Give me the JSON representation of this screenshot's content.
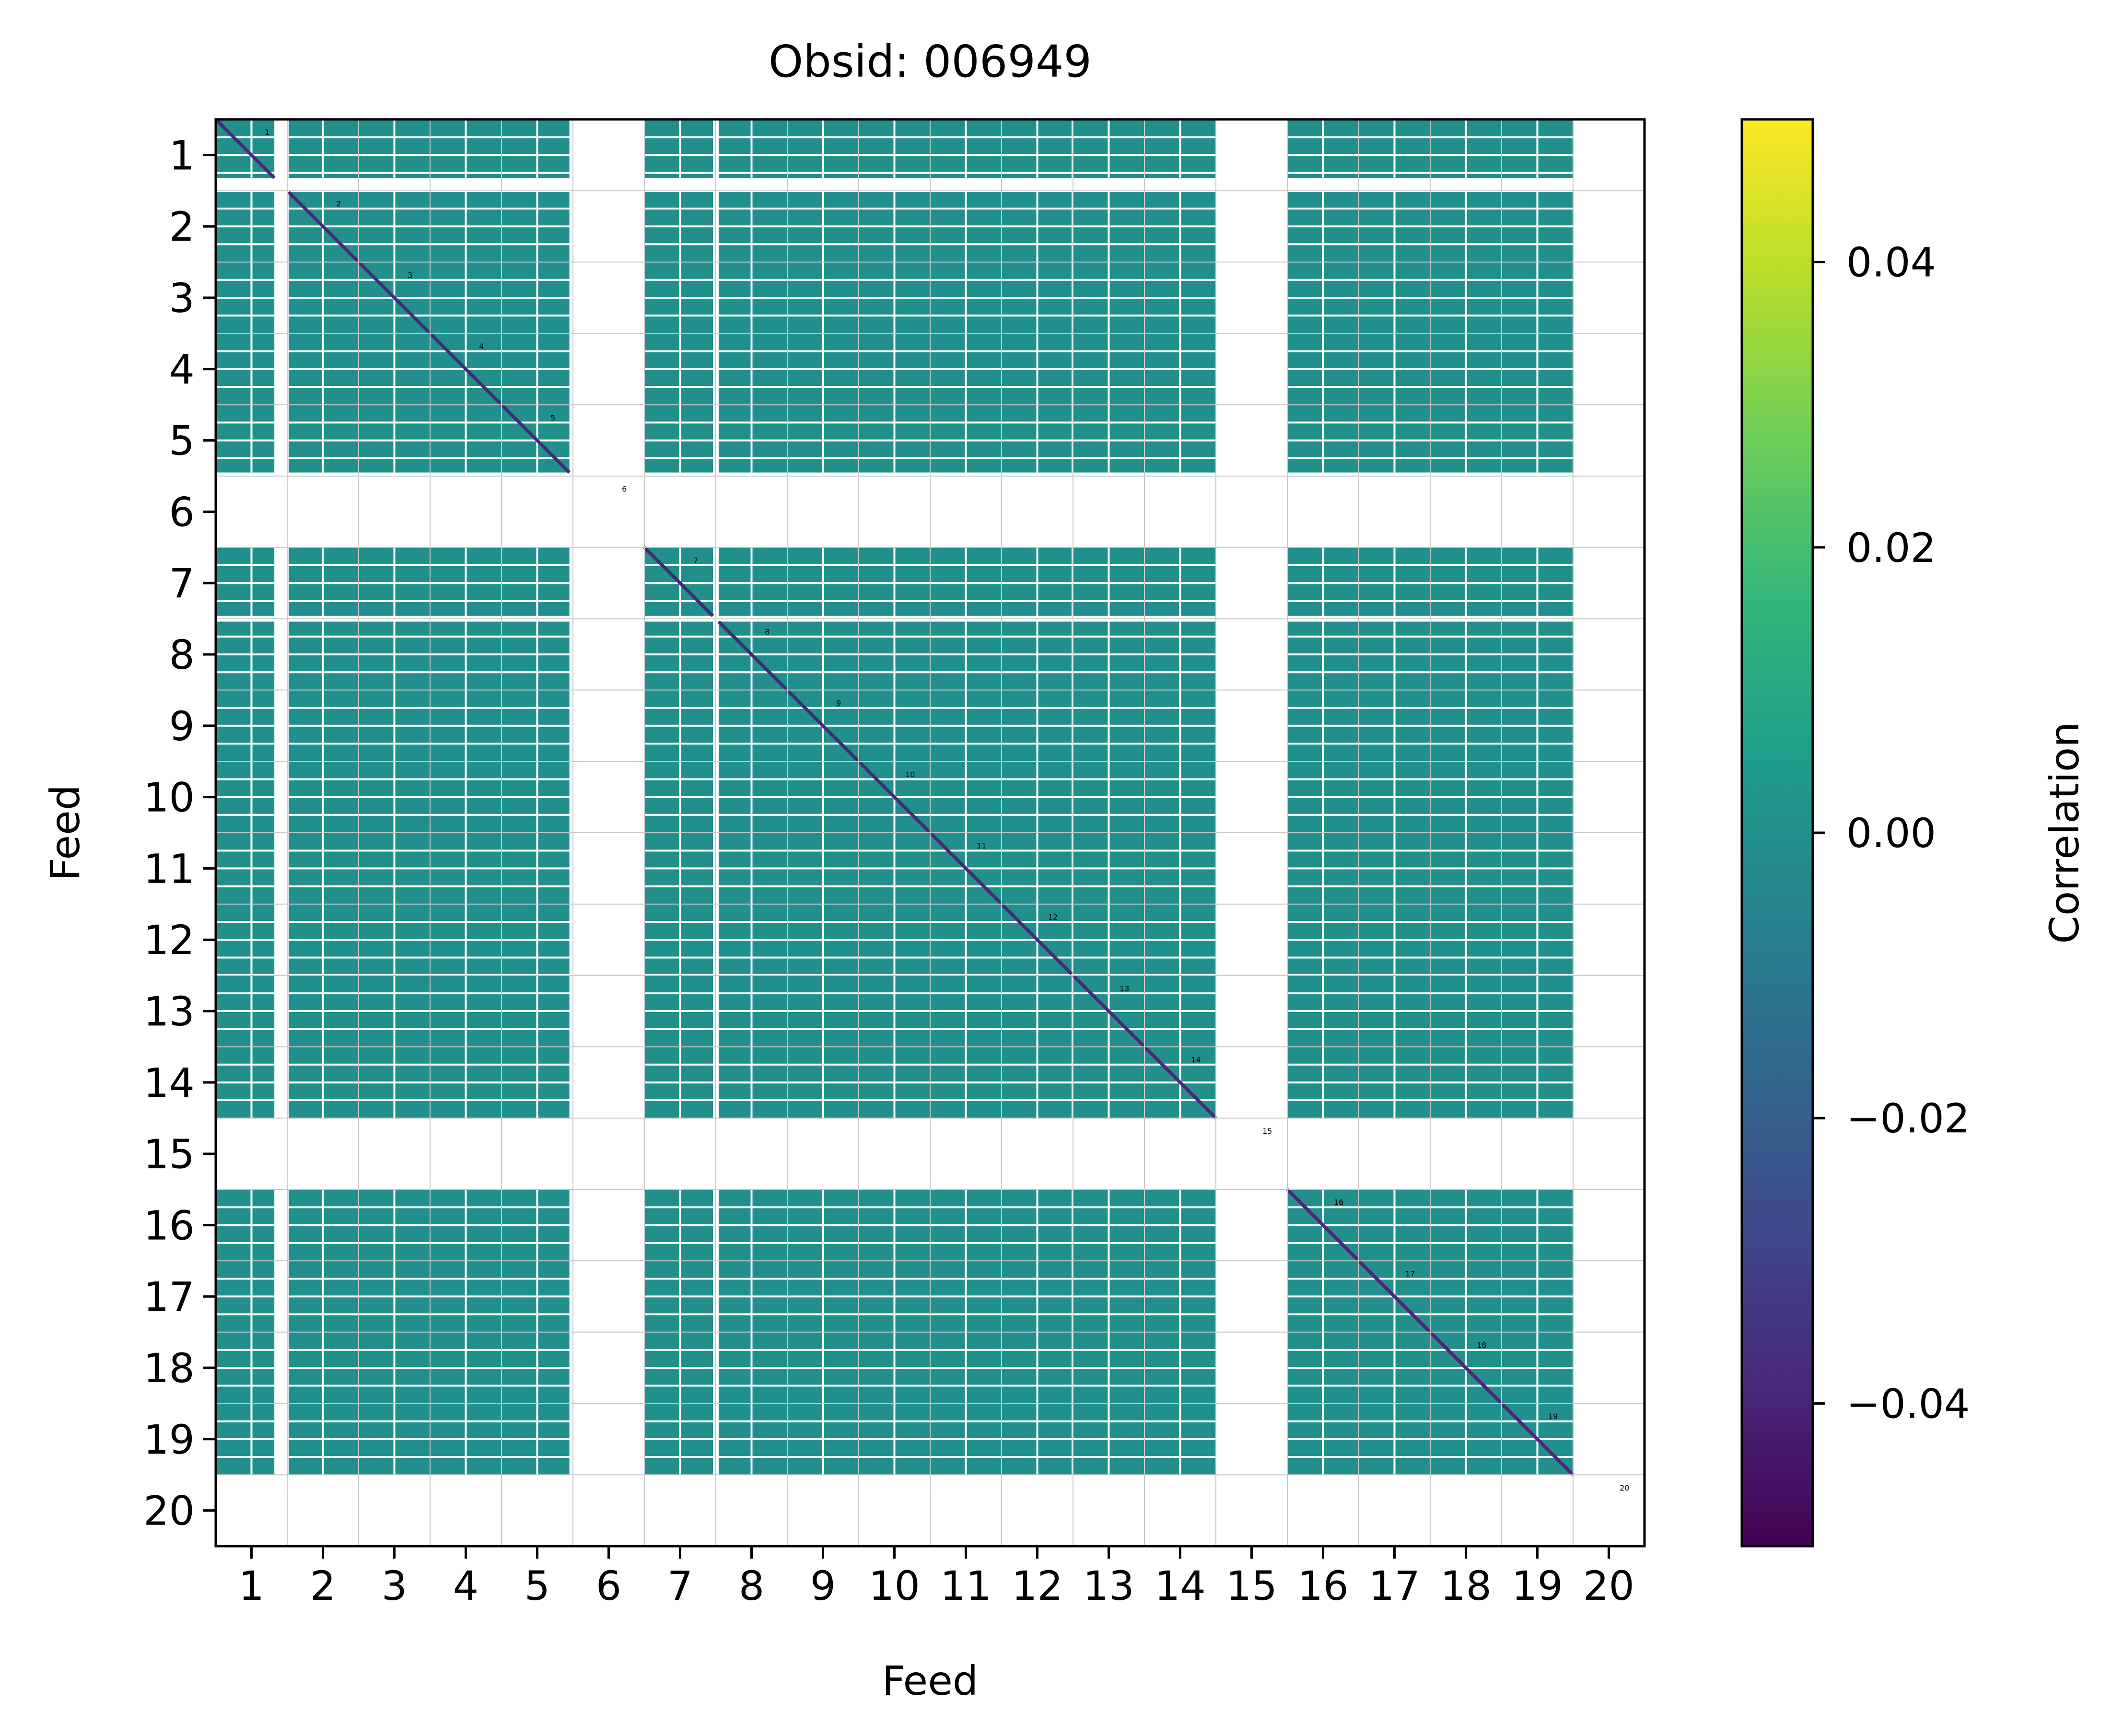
{
  "chart_data": {
    "type": "heatmap",
    "title": "Obsid: 006949",
    "xlabel": "Feed",
    "ylabel": "Feed",
    "colorbar": {
      "label": "Correlation",
      "colormap": "viridis",
      "vmin": -0.05,
      "vmax": 0.05,
      "ticks": [
        0.04,
        0.02,
        0.0,
        -0.02,
        -0.04
      ],
      "tick_labels": [
        "0.04",
        "0.02",
        "0.00",
        "−0.02",
        "−0.04"
      ]
    },
    "feeds": [
      1,
      2,
      3,
      4,
      5,
      6,
      7,
      8,
      9,
      10,
      11,
      12,
      13,
      14,
      15,
      16,
      17,
      18,
      19,
      20
    ],
    "x_tick_labels": [
      "1",
      "2",
      "3",
      "4",
      "5",
      "6",
      "7",
      "8",
      "9",
      "10",
      "11",
      "12",
      "13",
      "14",
      "15",
      "16",
      "17",
      "18",
      "19",
      "20"
    ],
    "y_tick_labels": [
      "1",
      "2",
      "3",
      "4",
      "5",
      "6",
      "7",
      "8",
      "9",
      "10",
      "11",
      "12",
      "13",
      "14",
      "15",
      "16",
      "17",
      "18",
      "19",
      "20"
    ],
    "diagonal_labels": [
      "1",
      "2",
      "3",
      "4",
      "5",
      "6",
      "7",
      "8",
      "9",
      "10",
      "11",
      "12",
      "13",
      "14",
      "15",
      "16",
      "17",
      "18",
      "19",
      "20"
    ],
    "axis_range_feed": [
      0.5,
      20.5
    ],
    "offdiag_value": 0.0,
    "diag_value": -0.05,
    "row_coverage": [
      [
        0,
        0.82
      ],
      [
        0.02,
        1
      ],
      [
        0,
        1
      ],
      [
        0,
        1
      ],
      [
        0,
        0.95
      ],
      [
        0,
        0
      ],
      [
        0,
        0.96
      ],
      [
        0.04,
        1
      ],
      [
        0,
        1
      ],
      [
        0,
        1
      ],
      [
        0,
        1
      ],
      [
        0,
        0.98
      ],
      [
        0,
        1
      ],
      [
        0,
        1
      ],
      [
        0,
        0
      ],
      [
        0,
        1
      ],
      [
        0,
        1
      ],
      [
        0,
        1
      ],
      [
        0,
        1
      ],
      [
        0,
        0
      ]
    ],
    "masked_feeds": [
      6,
      15,
      20
    ],
    "colors": {
      "cell": "#21908d",
      "diagonal": "#482878",
      "grid": "#c8c8c8",
      "cell_gap": "#ffffff",
      "viridis": [
        "#440154",
        "#482878",
        "#3e4989",
        "#31688e",
        "#26828e",
        "#1f9e89",
        "#35b779",
        "#6ece58",
        "#b5de2b",
        "#fde725"
      ]
    }
  }
}
